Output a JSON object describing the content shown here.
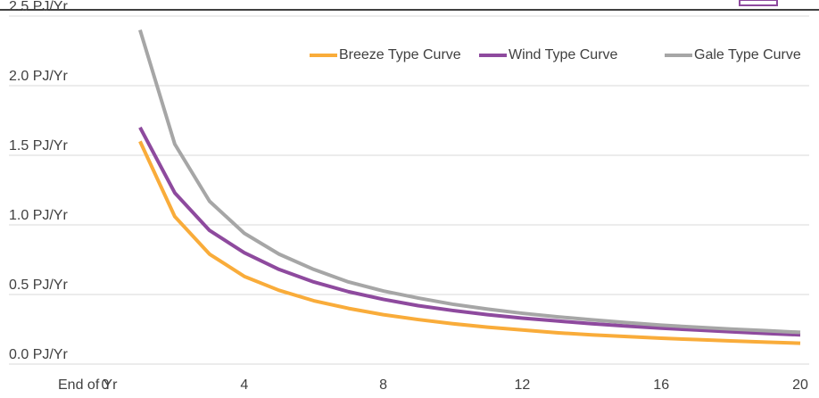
{
  "chart_data": {
    "type": "line",
    "x_label": "End of Yr",
    "x": [
      1,
      2,
      3,
      4,
      5,
      6,
      7,
      8,
      9,
      10,
      11,
      12,
      13,
      14,
      15,
      16,
      17,
      18,
      19,
      20
    ],
    "series": [
      {
        "name": "Breeze Type Curve",
        "color": "#f9ac3a",
        "values": [
          1.6,
          1.06,
          0.79,
          0.63,
          0.53,
          0.455,
          0.4,
          0.355,
          0.32,
          0.29,
          0.265,
          0.245,
          0.225,
          0.21,
          0.198,
          0.186,
          0.176,
          0.167,
          0.158,
          0.15
        ]
      },
      {
        "name": "Wind Type Curve",
        "color": "#8e4a9e",
        "values": [
          1.7,
          1.23,
          0.96,
          0.8,
          0.68,
          0.59,
          0.52,
          0.465,
          0.42,
          0.385,
          0.355,
          0.33,
          0.31,
          0.29,
          0.273,
          0.258,
          0.245,
          0.232,
          0.22,
          0.21
        ]
      },
      {
        "name": "Gale Type Curve",
        "color": "#a6a6a6",
        "values": [
          2.4,
          1.58,
          1.17,
          0.94,
          0.79,
          0.68,
          0.59,
          0.525,
          0.475,
          0.43,
          0.395,
          0.365,
          0.34,
          0.318,
          0.298,
          0.28,
          0.265,
          0.252,
          0.24,
          0.228
        ]
      }
    ],
    "xlim": [
      0,
      20
    ],
    "xticks": [
      0,
      4,
      8,
      12,
      16,
      20
    ],
    "ylim": [
      0,
      2.5
    ],
    "yticks": [
      {
        "value": 0,
        "label": "0.0 PJ/Yr"
      },
      {
        "value": 0.5,
        "label": "0.5 PJ/Yr"
      },
      {
        "value": 1,
        "label": "1.0 PJ/Yr"
      },
      {
        "value": 1.5,
        "label": "1.5 PJ/Yr"
      },
      {
        "value": 2,
        "label": "2.0 PJ/Yr"
      },
      {
        "value": 2.5,
        "label": "2.5 PJ/Yr"
      }
    ],
    "grid": true,
    "legend": "top-right"
  }
}
